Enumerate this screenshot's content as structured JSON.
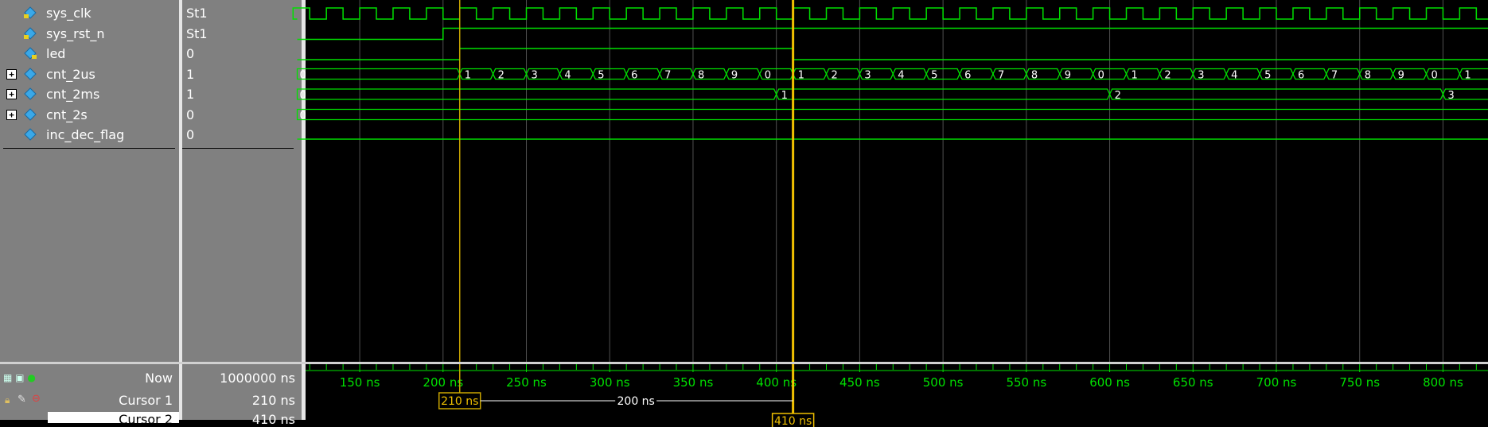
{
  "colors": {
    "wave": "#00e000",
    "cursor_active": "#f0c000",
    "cursor": "#c8a400",
    "grid": "#505050"
  },
  "signals": [
    {
      "name": "sys_clk",
      "value": "St1",
      "icon": "input-port-icon",
      "expandable": false
    },
    {
      "name": "sys_rst_n",
      "value": "St1",
      "icon": "input-port-icon",
      "expandable": false
    },
    {
      "name": "led",
      "value": "0",
      "icon": "output-port-icon",
      "expandable": false
    },
    {
      "name": "cnt_2us",
      "value": "1",
      "icon": "register-icon",
      "expandable": true
    },
    {
      "name": "cnt_2ms",
      "value": "1",
      "icon": "register-icon",
      "expandable": true
    },
    {
      "name": "cnt_2s",
      "value": "0",
      "icon": "register-icon",
      "expandable": true
    },
    {
      "name": "inc_dec_flag",
      "value": "0",
      "icon": "register-icon",
      "expandable": false
    }
  ],
  "bottom": {
    "now_label": "Now",
    "now_value": "1000000 ns",
    "cursor1_label": "Cursor 1",
    "cursor1_value": "210 ns",
    "cursor2_label": "Cursor 2",
    "cursor2_value": "410 ns"
  },
  "timeline": {
    "start_ns": 117.5,
    "end_ns": 827,
    "major_step": 50,
    "labels": [
      "150 ns",
      "200 ns",
      "250 ns",
      "300 ns",
      "350 ns",
      "400 ns",
      "450 ns",
      "500 ns",
      "550 ns",
      "600 ns",
      "650 ns",
      "700 ns",
      "750 ns",
      "800 ns"
    ],
    "label_values": [
      150,
      200,
      250,
      300,
      350,
      400,
      450,
      500,
      550,
      600,
      650,
      700,
      750,
      800
    ],
    "cursor1_ns": 210,
    "cursor2_ns": 410,
    "cursor1_tag": "210 ns",
    "cursor2_tag": "410 ns",
    "delta_tag": "200 ns"
  },
  "waves": {
    "clk_period_ns": 20,
    "clk_first_rise_ns": 130,
    "rst_rise_ns": 200,
    "led_edges_ns": [
      210,
      410
    ],
    "cnt_2us": {
      "initial": "0",
      "first_change_ns": 210,
      "step_ns": 20,
      "start_value": 1,
      "modulo": 10
    },
    "cnt_2ms": {
      "initial": "0",
      "changes": [
        {
          "t": 400,
          "v": "1"
        },
        {
          "t": 600,
          "v": "2"
        },
        {
          "t": 800,
          "v": "3"
        }
      ]
    },
    "cnt_2s": {
      "initial": "0"
    },
    "inc_dec_flag": {
      "initial": "0"
    }
  }
}
